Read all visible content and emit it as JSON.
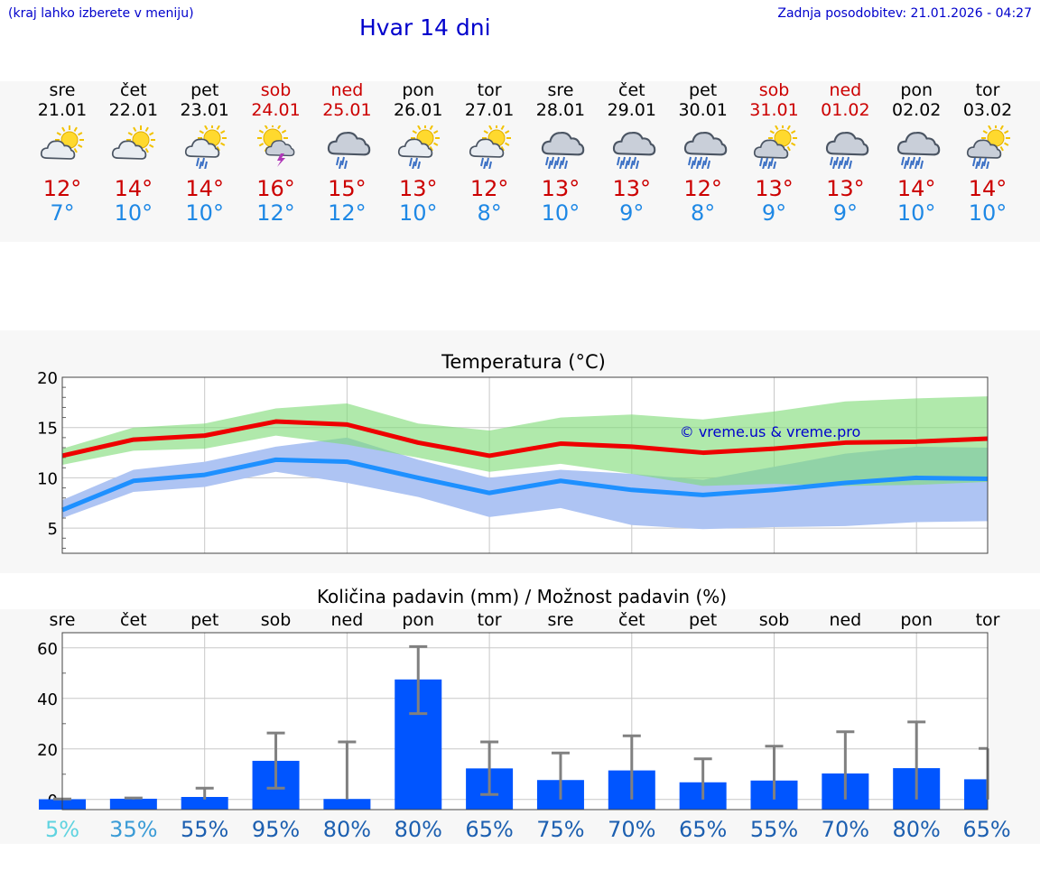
{
  "header": {
    "region_hint": "(kraj lahko izberete v meniju)",
    "title": "Hvar 14 dni",
    "updated": "Zadnja posodobitev: 21.01.2026 - 04:27"
  },
  "days": [
    {
      "name": "sre",
      "date": "21.01",
      "weekend": false,
      "icon": "partly-sunny-cloud-icon",
      "max": "12°",
      "min": "7°"
    },
    {
      "name": "čet",
      "date": "22.01",
      "weekend": false,
      "icon": "partly-sunny-cloud-icon",
      "max": "14°",
      "min": "10°"
    },
    {
      "name": "pet",
      "date": "23.01",
      "weekend": false,
      "icon": "sun-cloud-rain-icon",
      "max": "14°",
      "min": "10°"
    },
    {
      "name": "sob",
      "date": "24.01",
      "weekend": true,
      "icon": "sun-cloud-thunder-icon",
      "max": "16°",
      "min": "12°"
    },
    {
      "name": "ned",
      "date": "25.01",
      "weekend": true,
      "icon": "cloud-rain-icon",
      "max": "15°",
      "min": "12°"
    },
    {
      "name": "pon",
      "date": "26.01",
      "weekend": false,
      "icon": "sun-cloud-rain-icon",
      "max": "13°",
      "min": "10°"
    },
    {
      "name": "tor",
      "date": "27.01",
      "weekend": false,
      "icon": "sun-cloud-rain-icon",
      "max": "12°",
      "min": "8°"
    },
    {
      "name": "sre",
      "date": "28.01",
      "weekend": false,
      "icon": "cloud-heavy-rain-icon",
      "max": "13°",
      "min": "10°"
    },
    {
      "name": "čet",
      "date": "29.01",
      "weekend": false,
      "icon": "cloud-heavy-rain-icon",
      "max": "13°",
      "min": "9°"
    },
    {
      "name": "pet",
      "date": "30.01",
      "weekend": false,
      "icon": "cloud-heavy-rain-icon",
      "max": "12°",
      "min": "8°"
    },
    {
      "name": "sob",
      "date": "31.01",
      "weekend": true,
      "icon": "sun-cloud-heavy-rain-icon",
      "max": "13°",
      "min": "9°"
    },
    {
      "name": "ned",
      "date": "01.02",
      "weekend": true,
      "icon": "cloud-heavy-rain-icon",
      "max": "13°",
      "min": "9°"
    },
    {
      "name": "pon",
      "date": "02.02",
      "weekend": false,
      "icon": "cloud-heavy-rain-icon",
      "max": "14°",
      "min": "10°"
    },
    {
      "name": "tor",
      "date": "03.02",
      "weekend": false,
      "icon": "sun-cloud-heavy-rain-icon",
      "max": "14°",
      "min": "10°"
    }
  ],
  "colors": {
    "max_line": "#ee0000",
    "min_line": "#1e90ff",
    "max_band": "#a8e6a3",
    "min_band": "#aec4f3",
    "overlap_band": "#82c8a8",
    "bar": "#0055ff",
    "error": "#808080",
    "link": "#0000cc"
  },
  "chart_data": [
    {
      "type": "line",
      "title": "Temperatura (°C)",
      "watermark": "© vreme.us & vreme.pro",
      "ylim": [
        2.5,
        20
      ],
      "yticks": [
        5,
        10,
        15,
        20
      ],
      "x": [
        0,
        1,
        2,
        3,
        4,
        5,
        6,
        7,
        8,
        9,
        10,
        11,
        12,
        13
      ],
      "series": [
        {
          "name": "max",
          "values": [
            12.2,
            13.8,
            14.2,
            15.6,
            15.3,
            13.5,
            12.2,
            13.4,
            13.1,
            12.5,
            12.9,
            13.5,
            13.6,
            13.9
          ]
        },
        {
          "name": "min",
          "values": [
            6.8,
            9.7,
            10.3,
            11.8,
            11.6,
            10.0,
            8.5,
            9.7,
            8.8,
            8.3,
            8.8,
            9.5,
            10.0,
            9.9
          ]
        }
      ],
      "bands": [
        {
          "name": "max_range",
          "low": [
            11.3,
            12.7,
            12.9,
            14.2,
            13.3,
            12.0,
            10.6,
            11.4,
            10.4,
            9.2,
            9.4,
            9.2,
            9.3,
            9.6
          ],
          "high": [
            12.9,
            15.0,
            15.4,
            16.9,
            17.4,
            15.4,
            14.7,
            16.0,
            16.3,
            15.8,
            16.6,
            17.6,
            17.9,
            18.1
          ]
        },
        {
          "name": "min_range",
          "low": [
            6.0,
            8.6,
            9.1,
            10.6,
            9.5,
            8.1,
            6.1,
            7.0,
            5.3,
            4.9,
            5.1,
            5.2,
            5.6,
            5.7
          ],
          "high": [
            7.8,
            10.8,
            11.6,
            13.1,
            14.0,
            11.8,
            10.0,
            10.8,
            10.4,
            9.8,
            11.1,
            12.4,
            13.1,
            13.0
          ]
        }
      ]
    },
    {
      "type": "bar",
      "title": "Količina padavin (mm) / Možnost padavin (%)",
      "categories": [
        "sre",
        "čet",
        "pet",
        "sob",
        "ned",
        "pon",
        "tor",
        "sre",
        "čet",
        "pet",
        "sob",
        "ned",
        "pon",
        "tor"
      ],
      "ylim": [
        -4,
        66
      ],
      "yticks": [
        0,
        20,
        40,
        60
      ],
      "values": [
        0.1,
        0.3,
        1.0,
        15.3,
        0.2,
        47.5,
        12.3,
        7.7,
        11.5,
        6.8,
        7.5,
        10.3,
        12.4,
        8.0
      ],
      "error_low": [
        0,
        0,
        0,
        4.5,
        0,
        34.0,
        2.0,
        0,
        0,
        0,
        0,
        0,
        0,
        0
      ],
      "error_high": [
        0.2,
        0.6,
        4.5,
        26.3,
        22.8,
        60.5,
        22.8,
        18.4,
        25.2,
        16.1,
        21.1,
        26.8,
        30.7,
        20.2
      ],
      "probabilities": [
        "5%",
        "35%",
        "55%",
        "95%",
        "80%",
        "80%",
        "65%",
        "75%",
        "70%",
        "65%",
        "55%",
        "70%",
        "80%",
        "65%"
      ],
      "probability_colors": [
        "#5fd3e0",
        "#3a9bd6",
        "#1c5fb0",
        "#1c5fb0",
        "#1c5fb0",
        "#1c5fb0",
        "#1c5fb0",
        "#1c5fb0",
        "#1c5fb0",
        "#1c5fb0",
        "#1c5fb0",
        "#1c5fb0",
        "#1c5fb0",
        "#1c5fb0"
      ]
    }
  ]
}
